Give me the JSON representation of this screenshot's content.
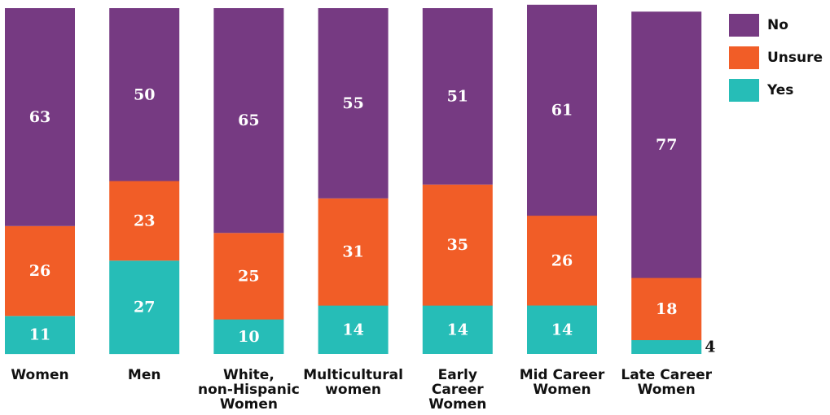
{
  "chart_data": {
    "type": "bar",
    "stacked": true,
    "categories": [
      "Women",
      "Men",
      "White, non-Hispanic Women",
      "Multicultural women",
      "Early Career Women",
      "Mid Career Women",
      "Late Career Women"
    ],
    "category_lines": [
      [
        "Women"
      ],
      [
        "Men"
      ],
      [
        "White,",
        "non-Hispanic",
        "Women"
      ],
      [
        "Multicultural",
        "women"
      ],
      [
        "Early",
        "Career",
        "Women"
      ],
      [
        "Mid Career",
        "Women"
      ],
      [
        "Late Career",
        "Women"
      ]
    ],
    "series": [
      {
        "name": "Yes",
        "color": "#26bdb7",
        "values": [
          11,
          27,
          10,
          14,
          14,
          14,
          4
        ]
      },
      {
        "name": "Unsure",
        "color": "#f15d27",
        "values": [
          26,
          23,
          25,
          31,
          35,
          26,
          18
        ]
      },
      {
        "name": "No",
        "color": "#763a82",
        "values": [
          63,
          50,
          65,
          55,
          51,
          61,
          77
        ]
      }
    ],
    "legend_order": [
      "No",
      "Unsure",
      "Yes"
    ],
    "legend_position": "top-right",
    "label_color": "#ffffff",
    "outside_label_color": "#111111",
    "grid": false
  }
}
